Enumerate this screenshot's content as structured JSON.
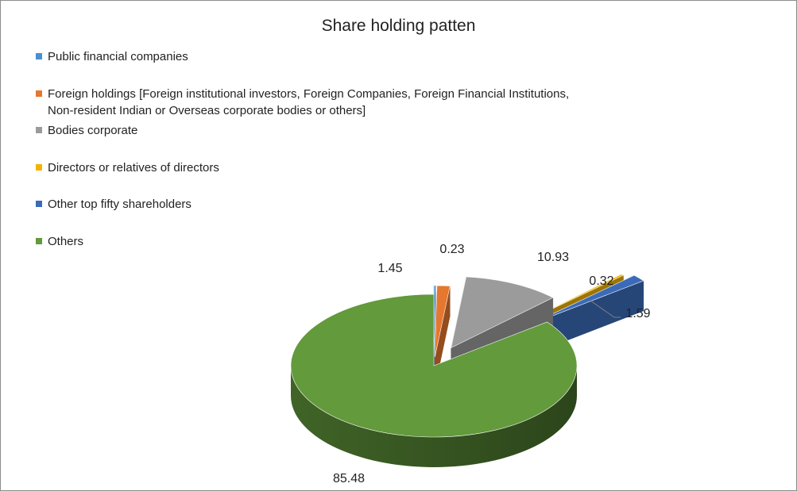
{
  "chart_data": {
    "type": "pie",
    "variant": "3d-exploded",
    "title": "Share holding patten",
    "legend_position": "top-left",
    "slices": [
      {
        "label": "Public financial companies",
        "value": 0.23,
        "data_label": "0.23",
        "color": "#4a8fd0"
      },
      {
        "label": "Foreign holdings [Foreign institutional investors, Foreign Companies, Foreign Financial Institutions, Non-resident Indian or Overseas corporate bodies or others]",
        "value": 1.45,
        "data_label": "1.45",
        "color": "#e5772e"
      },
      {
        "label": "Bodies corporate",
        "value": 10.93,
        "data_label": "10.93",
        "color": "#9b9b9b"
      },
      {
        "label": "Directors or relatives of directors",
        "value": 0.32,
        "data_label": "0.32",
        "color": "#f2b400"
      },
      {
        "label": "Other top fifty shareholders",
        "value": 1.59,
        "data_label": "1.59",
        "color": "#3b6bb8"
      },
      {
        "label": "Others",
        "value": 85.48,
        "data_label": "85.48",
        "color": "#629a3c"
      }
    ]
  }
}
